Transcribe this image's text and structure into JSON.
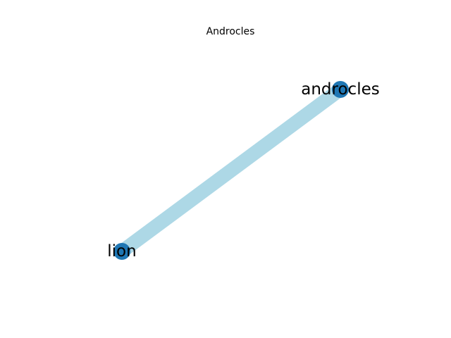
{
  "title": "Androcles",
  "colors": {
    "edge": "#add8e6",
    "node": "#1f77b4",
    "label": "#000000",
    "background": "#ffffff"
  },
  "graph": {
    "nodes": [
      {
        "id": "androcles",
        "label": "androcles"
      },
      {
        "id": "lion",
        "label": "lion"
      }
    ],
    "edges": [
      {
        "source": "androcles",
        "target": "lion"
      }
    ]
  }
}
